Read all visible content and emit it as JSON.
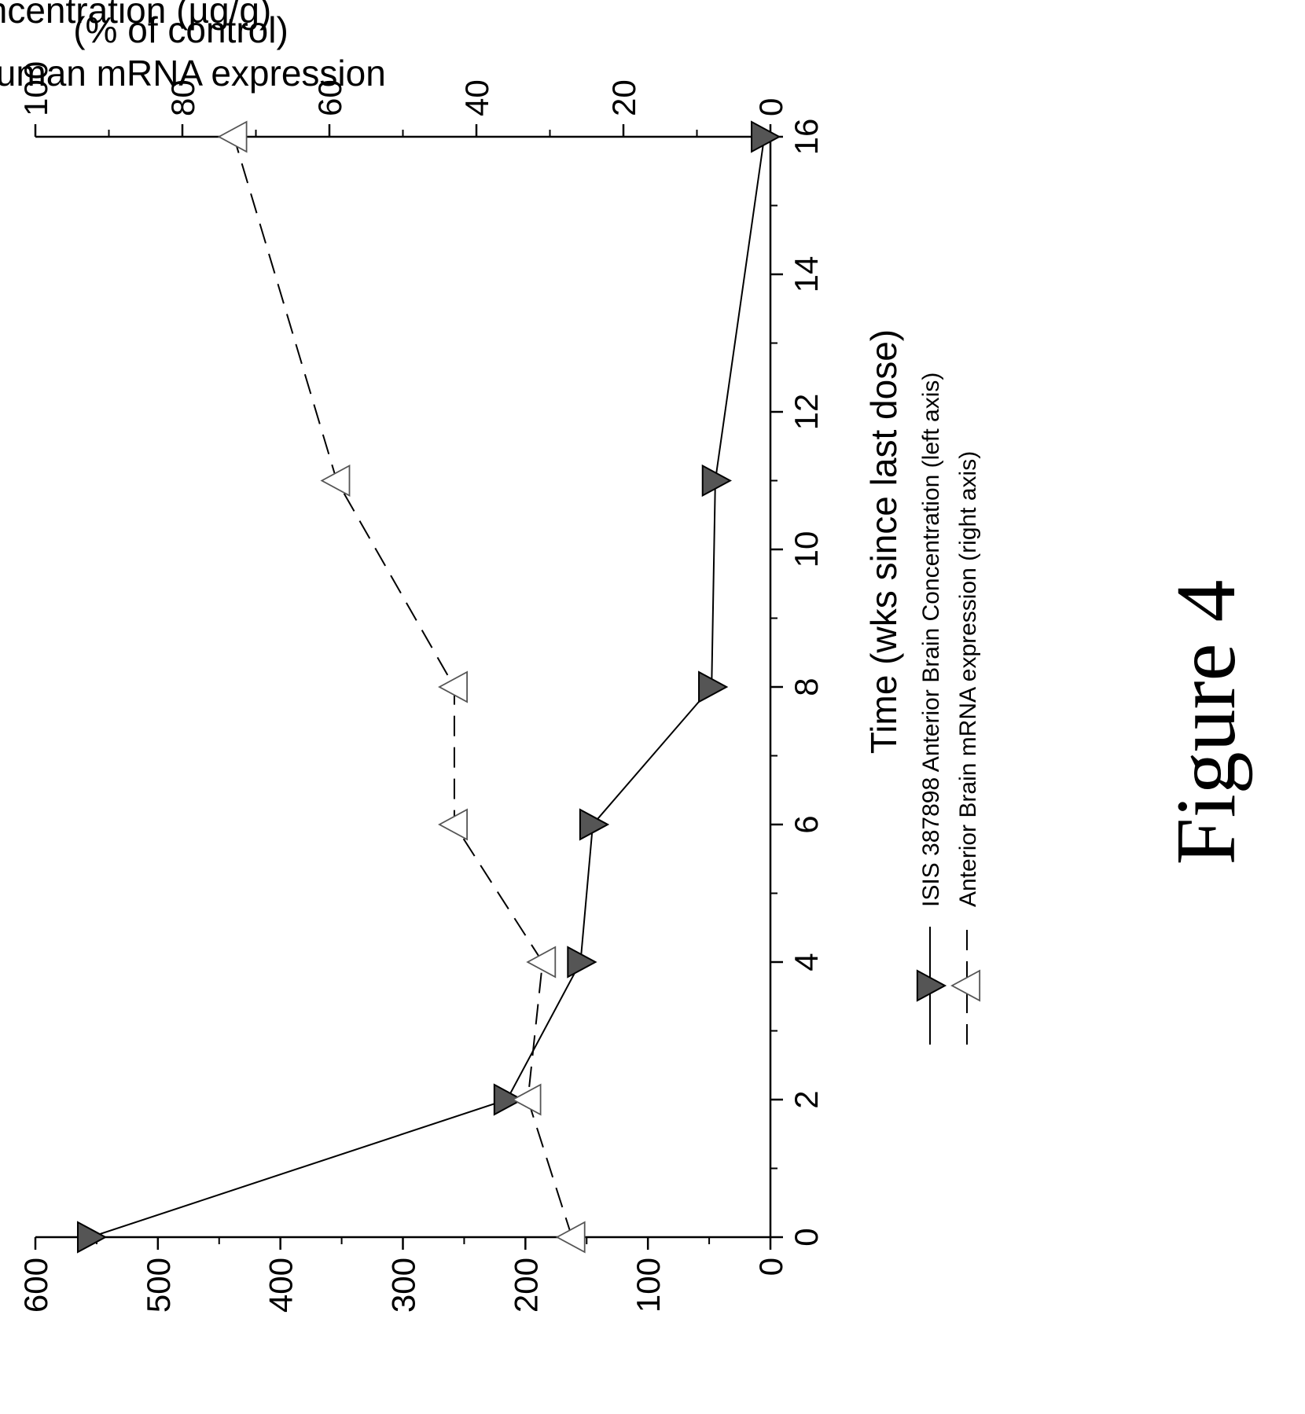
{
  "figure_label": "Figure 4",
  "chart_data": {
    "type": "line",
    "xlabel": "Time (wks since last dose)",
    "ylabel_left": "Brain Concentration (µg/g)",
    "ylabel_right_line1": "human mRNA expression",
    "ylabel_right_line2": "(% of control)",
    "xlim": [
      0,
      16
    ],
    "ylim_left": [
      0,
      600
    ],
    "ylim_right": [
      0,
      100
    ],
    "x_ticks": [
      0,
      2,
      4,
      6,
      8,
      10,
      12,
      14,
      16
    ],
    "y_ticks_left": [
      0,
      100,
      200,
      300,
      400,
      500,
      600
    ],
    "y_ticks_right": [
      0,
      20,
      40,
      60,
      80,
      100
    ],
    "grid": false,
    "legend_position": "bottom",
    "series": [
      {
        "name": "ISIS 387898 Anterior Brain Concentration (left axis)",
        "axis": "left",
        "style": "solid",
        "marker": "filled-down-triangle",
        "color": "#555555",
        "x": [
          0,
          2,
          4,
          6,
          8,
          11,
          16
        ],
        "y": [
          555,
          215,
          155,
          145,
          48,
          45,
          5
        ]
      },
      {
        "name": "Anterior Brain mRNA expression (right axis)",
        "axis": "right",
        "style": "dashed",
        "marker": "open-up-triangle",
        "color": "#ffffff",
        "x": [
          0,
          2,
          4,
          6,
          8,
          11,
          16
        ],
        "y": [
          27,
          33,
          31,
          43,
          43,
          59,
          73
        ]
      }
    ]
  }
}
